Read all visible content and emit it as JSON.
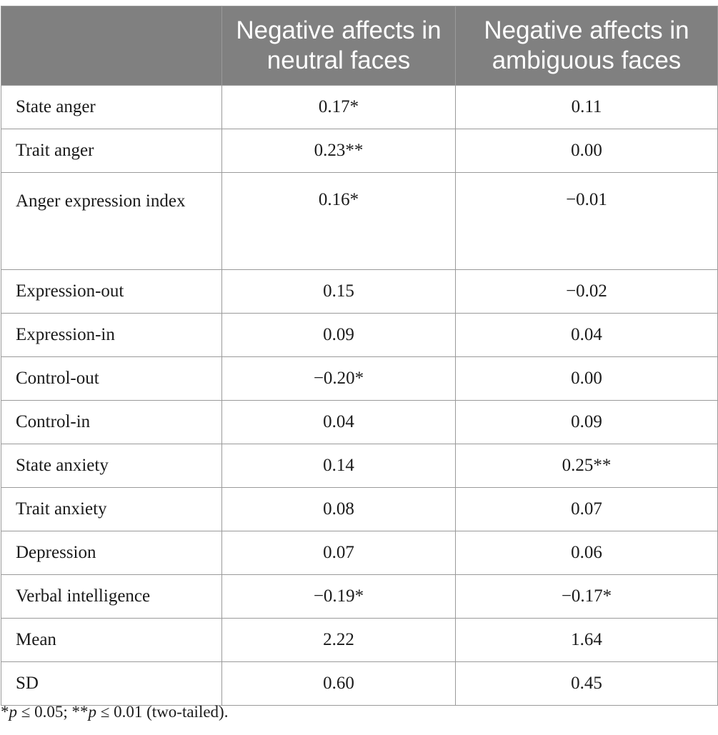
{
  "table": {
    "headers": [
      "",
      "Negative affects in neutral faces",
      "Negative affects in ambiguous faces"
    ],
    "rows": [
      {
        "label": "State anger",
        "neutral": "0.17*",
        "ambiguous": "0.11"
      },
      {
        "label": "Trait anger",
        "neutral": "0.23**",
        "ambiguous": "0.00"
      },
      {
        "label": "Anger expression index",
        "neutral": "0.16*",
        "ambiguous": "−0.01"
      },
      {
        "label": "Expression-out",
        "neutral": "0.15",
        "ambiguous": "−0.02"
      },
      {
        "label": "Expression-in",
        "neutral": "0.09",
        "ambiguous": "0.04"
      },
      {
        "label": "Control-out",
        "neutral": "−0.20*",
        "ambiguous": "0.00"
      },
      {
        "label": "Control-in",
        "neutral": "0.04",
        "ambiguous": "0.09"
      },
      {
        "label": "State anxiety",
        "neutral": "0.14",
        "ambiguous": "0.25**"
      },
      {
        "label": "Trait anxiety",
        "neutral": "0.08",
        "ambiguous": "0.07"
      },
      {
        "label": "Depression",
        "neutral": "0.07",
        "ambiguous": "0.06"
      },
      {
        "label": "Verbal intelligence",
        "neutral": "−0.19*",
        "ambiguous": "−0.17*"
      },
      {
        "label": "Mean",
        "neutral": "2.22",
        "ambiguous": "1.64"
      },
      {
        "label": "SD",
        "neutral": "0.60",
        "ambiguous": "0.45"
      }
    ]
  },
  "footnote": {
    "star1": "*",
    "p1": "p",
    "t1": " ≤ 0.05; ",
    "star2": "**",
    "p2": "p",
    "t2": " ≤ 0.01 (two-tailed)."
  }
}
